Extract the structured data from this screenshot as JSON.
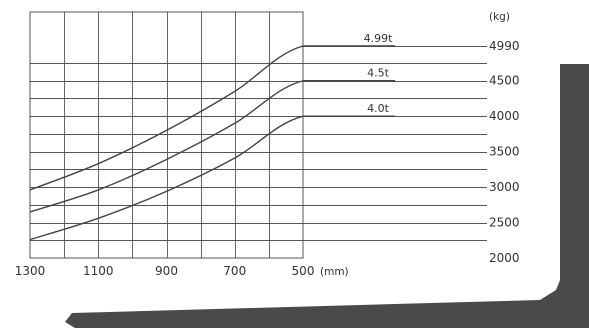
{
  "chart_data": {
    "type": "line",
    "title": "",
    "xlabel": "(mm)",
    "ylabel": "(kg)",
    "x_tick_labels": [
      "1300",
      "1100",
      "900",
      "700",
      "500"
    ],
    "y_tick_labels": [
      "2000",
      "2500",
      "3000",
      "3500",
      "4000",
      "4500",
      "4990"
    ],
    "xlim": [
      1300,
      500
    ],
    "ylim": [
      2000,
      5000
    ],
    "x_inverted": true,
    "grid": true,
    "colors": {
      "grid": "#555555",
      "line": "#444444",
      "fork": "#4a4a4a",
      "text": "#333333"
    },
    "series": [
      {
        "name": "4.99t",
        "points": [
          [
            1300,
            2960
          ],
          [
            1100,
            3330
          ],
          [
            900,
            3800
          ],
          [
            700,
            4350
          ],
          [
            500,
            4990
          ],
          [
            230,
            4990
          ]
        ]
      },
      {
        "name": "4.5t",
        "points": [
          [
            1300,
            2650
          ],
          [
            1100,
            2960
          ],
          [
            900,
            3390
          ],
          [
            700,
            3900
          ],
          [
            500,
            4500
          ],
          [
            230,
            4500
          ]
        ]
      },
      {
        "name": "4.0t",
        "points": [
          [
            1300,
            2260
          ],
          [
            1100,
            2560
          ],
          [
            900,
            2940
          ],
          [
            700,
            3410
          ],
          [
            500,
            4000
          ],
          [
            230,
            4000
          ]
        ]
      }
    ]
  }
}
